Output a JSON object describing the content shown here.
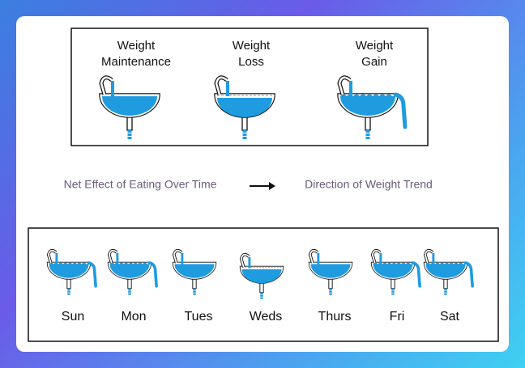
{
  "panels": {
    "states": [
      {
        "label": [
          "Weight",
          "Maintenance"
        ]
      },
      {
        "label": [
          "Weight",
          "Loss"
        ]
      },
      {
        "label": [
          "Weight",
          "Gain"
        ]
      }
    ],
    "legend": {
      "left": "Net Effect of Eating Over Time",
      "right": "Direction of Weight Trend"
    },
    "days": [
      "Sun",
      "Mon",
      "Tues",
      "Weds",
      "Thurs",
      "Fri",
      "Sat"
    ]
  }
}
